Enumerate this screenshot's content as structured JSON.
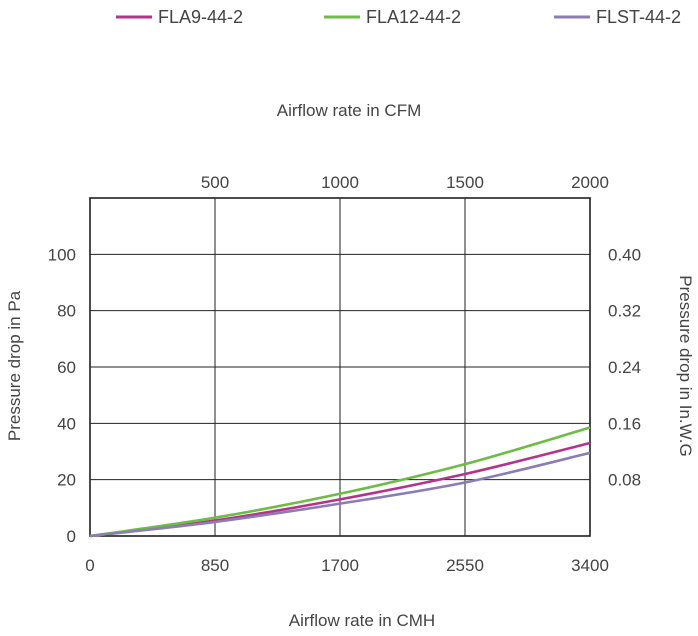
{
  "chart_data": {
    "type": "line",
    "x_axis_bottom": {
      "label": "Airflow rate in CMH",
      "ticks": [
        "0",
        "850",
        "1700",
        "2550",
        "3400"
      ],
      "range": [
        0,
        3400
      ]
    },
    "x_axis_top": {
      "label": "Airflow rate in CFM",
      "ticks": [
        "500",
        "1000",
        "1500",
        "2000"
      ]
    },
    "y_axis_left": {
      "label": "Pressure drop in Pa",
      "ticks": [
        "0",
        "20",
        "40",
        "60",
        "80",
        "100"
      ],
      "range": [
        0,
        120
      ]
    },
    "y_axis_right": {
      "label": "Pressure drop in In.W.G",
      "ticks": [
        "0.08",
        "0.16",
        "0.24",
        "0.32",
        "0.40"
      ]
    },
    "grid": true,
    "legend_position": "top",
    "series": [
      {
        "name": "FLA9-44-2",
        "color": "#b5338a",
        "x": [
          0,
          850,
          1700,
          2550,
          3400
        ],
        "y": [
          0,
          5.5,
          13,
          22,
          33
        ]
      },
      {
        "name": "FLA12-44-2",
        "color": "#6cbd45",
        "x": [
          0,
          850,
          1700,
          2550,
          3400
        ],
        "y": [
          0,
          6.5,
          15,
          25.5,
          38.5
        ]
      },
      {
        "name": "FLST-44-2",
        "color": "#8a7db5",
        "x": [
          0,
          850,
          1700,
          2550,
          3400
        ],
        "y": [
          0,
          5,
          11.5,
          19,
          29.5
        ]
      }
    ]
  }
}
